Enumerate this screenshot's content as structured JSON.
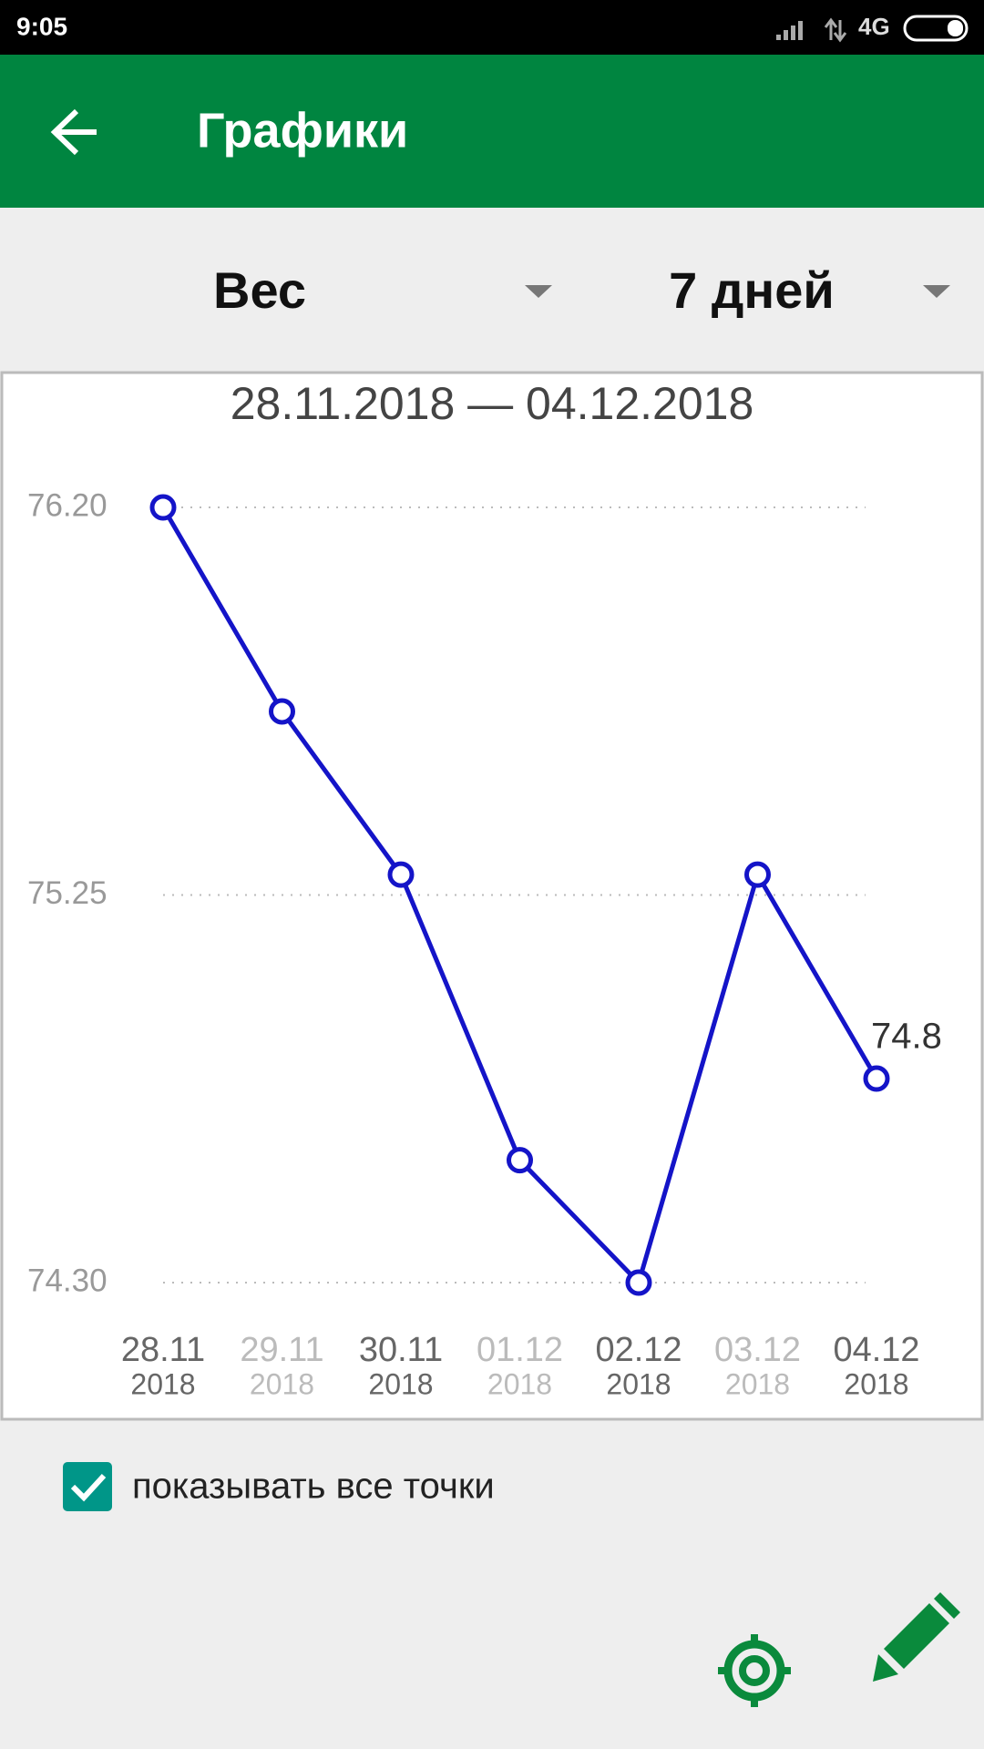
{
  "status_bar": {
    "time": "9:05",
    "network": "4G"
  },
  "app_bar": {
    "title": "Графики"
  },
  "selectors": [
    "Вес",
    "7 дней"
  ],
  "chart_data": {
    "type": "line",
    "title": "28.11.2018 — 04.12.2018",
    "categories": [
      [
        "28.11",
        "2018"
      ],
      [
        "29.11",
        "2018"
      ],
      [
        "30.11",
        "2018"
      ],
      [
        "01.12",
        "2018"
      ],
      [
        "02.12",
        "2018"
      ],
      [
        "03.12",
        "2018"
      ],
      [
        "04.12",
        "2018"
      ]
    ],
    "values": [
      76.2,
      75.7,
      75.3,
      74.6,
      74.3,
      75.3,
      74.8
    ],
    "color": "#1414c8",
    "ylim": [
      74.3,
      76.2
    ],
    "yticks": [
      {
        "value": 76.2,
        "label": "76.20"
      },
      75.25,
      {
        "value": 74.3,
        "label": "74.30"
      }
    ],
    "grid": true,
    "label_last_point": true
  },
  "checkbox": {
    "label": "показывать все точки",
    "checked": true
  }
}
